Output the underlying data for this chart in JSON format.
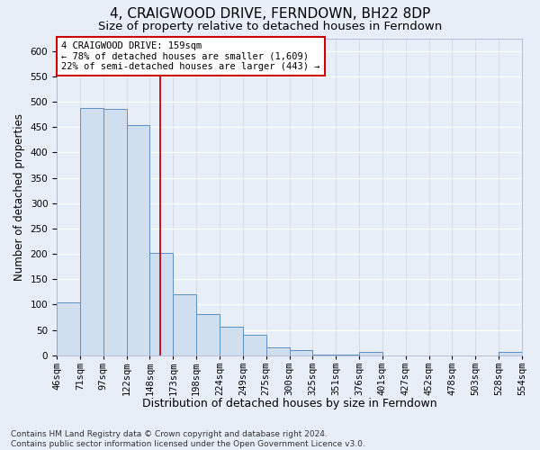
{
  "title": "4, CRAIGWOOD DRIVE, FERNDOWN, BH22 8DP",
  "subtitle": "Size of property relative to detached houses in Ferndown",
  "xlabel": "Distribution of detached houses by size in Ferndown",
  "ylabel": "Number of detached properties",
  "categories": [
    "46sqm",
    "71sqm",
    "97sqm",
    "122sqm",
    "148sqm",
    "173sqm",
    "198sqm",
    "224sqm",
    "249sqm",
    "275sqm",
    "300sqm",
    "325sqm",
    "351sqm",
    "376sqm",
    "401sqm",
    "427sqm",
    "452sqm",
    "478sqm",
    "503sqm",
    "528sqm",
    "554sqm"
  ],
  "bin_heights": [
    105,
    487,
    485,
    453,
    202,
    120,
    82,
    56,
    40,
    15,
    10,
    2,
    2,
    7,
    0,
    0,
    0,
    0,
    0,
    7
  ],
  "bar_fill_color": "#d0dff0",
  "bar_edge_color": "#6090c0",
  "vline_color": "#cc0000",
  "property_sqm": 159,
  "bin_edges_sqm": [
    46,
    71,
    97,
    122,
    148,
    173,
    198,
    224,
    249,
    275,
    300,
    325,
    351,
    376,
    401,
    427,
    452,
    478,
    503,
    528,
    554
  ],
  "annotation_line1": "4 CRAIGWOOD DRIVE: 159sqm",
  "annotation_line2": "← 78% of detached houses are smaller (1,609)",
  "annotation_line3": "22% of semi-detached houses are larger (443) →",
  "annotation_box_facecolor": "#ffffff",
  "annotation_box_edgecolor": "#cc0000",
  "ylim": [
    0,
    625
  ],
  "yticks": [
    0,
    50,
    100,
    150,
    200,
    250,
    300,
    350,
    400,
    450,
    500,
    550,
    600
  ],
  "footer": "Contains HM Land Registry data © Crown copyright and database right 2024.\nContains public sector information licensed under the Open Government Licence v3.0.",
  "bg_color": "#e8eef8",
  "grid_color": "#d0d8e8",
  "title_fontsize": 11,
  "subtitle_fontsize": 9.5,
  "ylabel_fontsize": 8.5,
  "xlabel_fontsize": 9,
  "tick_fontsize": 7.5,
  "annot_fontsize": 7.5,
  "footer_fontsize": 6.5
}
